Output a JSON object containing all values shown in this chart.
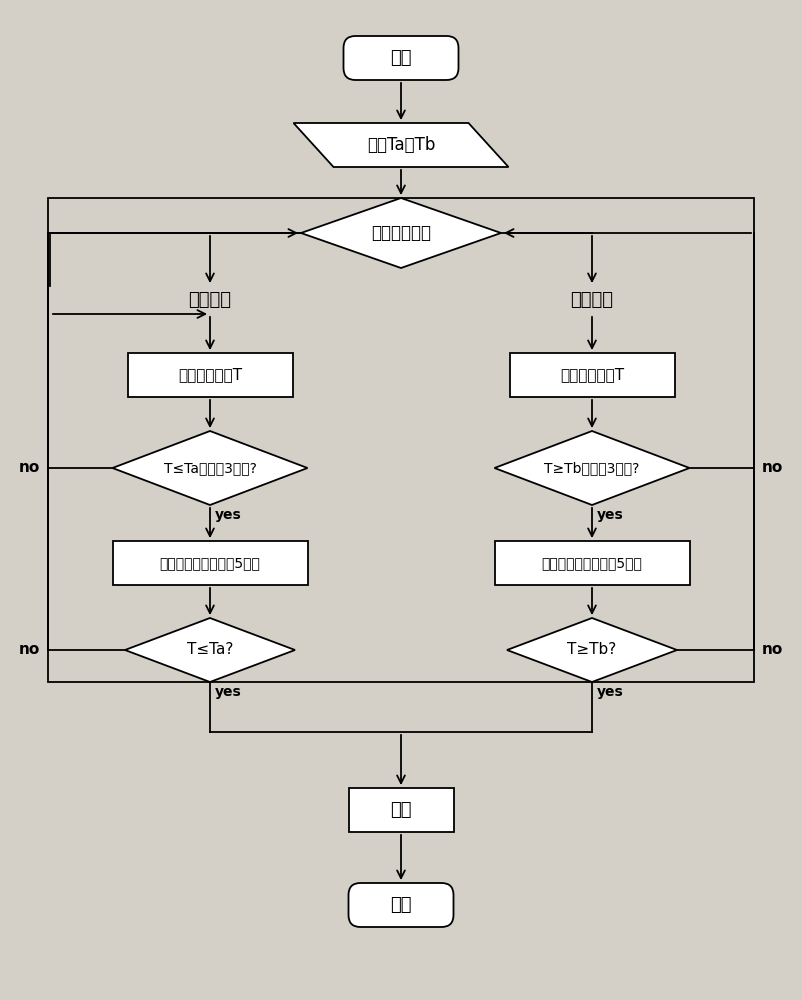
{
  "bg_color": "#d4d0c8",
  "box_color": "#ffffff",
  "box_edge": "#000000",
  "text_color": "#000000",
  "arrow_color": "#000000",
  "title_start": "开始",
  "title_preset": "预设Ta、Tb",
  "title_judge": "判断运行模式",
  "label_cool": "制冷模式",
  "label_heat": "制热模式",
  "text_detect_L": "检测盘管温度T",
  "text_detect_R": "检测盘管温度T",
  "text_cond1_L": "T≤Ta且持续3分钟?",
  "text_cond1_R": "T≥Tb且持续3分钟?",
  "text_fan_L": "室内机风扇高速运行5分钟",
  "text_fan_R": "室内机风扇高速运行5分钟",
  "text_cond2_L": "T≤Ta?",
  "text_cond2_R": "T≥Tb?",
  "text_alarm": "报警",
  "text_end": "结束",
  "yes": "yes",
  "no": "no"
}
